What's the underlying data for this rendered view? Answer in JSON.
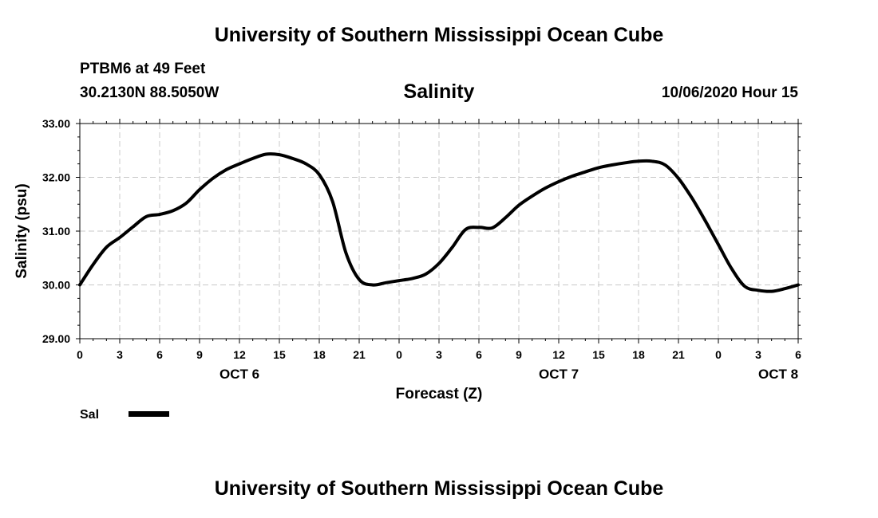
{
  "header": {
    "title": "University of Southern Mississippi Ocean Cube",
    "station": "PTBM6 at 49 Feet",
    "coordinates": "30.2130N 88.5050W",
    "variable": "Salinity",
    "datetime": "10/06/2020 Hour 15"
  },
  "footer": {
    "title": "University of Southern Mississippi Ocean Cube"
  },
  "chart_data": {
    "type": "line",
    "ylabel": "Salinity (psu)",
    "xlabel": "Forecast (Z)",
    "ylim": [
      29.0,
      33.0
    ],
    "yticks": [
      "29.00",
      "30.00",
      "31.00",
      "32.00",
      "33.00"
    ],
    "xlim": [
      0,
      54
    ],
    "xtick_labels": [
      "0",
      "3",
      "6",
      "9",
      "12",
      "15",
      "18",
      "21",
      "0",
      "3",
      "6",
      "9",
      "12",
      "15",
      "18",
      "21",
      "0",
      "3",
      "6"
    ],
    "x_units": "hours from 10/06/2020 00Z",
    "day_labels": [
      {
        "label": "OCT 6",
        "x": 12
      },
      {
        "label": "OCT 7",
        "x": 36
      },
      {
        "label": "OCT 8",
        "x": 52.5
      }
    ],
    "grid": true,
    "line_color": "#000000",
    "series": [
      {
        "name": "Sal",
        "x": [
          0,
          1,
          2,
          3,
          4,
          5,
          6,
          7,
          8,
          9,
          10,
          11,
          12,
          13,
          14,
          15,
          16,
          17,
          18,
          19,
          20,
          21,
          22,
          23,
          24,
          25,
          26,
          27,
          28,
          29,
          30,
          31,
          32,
          33,
          34,
          35,
          36,
          37,
          38,
          39,
          40,
          41,
          42,
          43,
          44,
          45,
          46,
          47,
          48,
          49,
          50,
          51,
          52,
          53,
          54
        ],
        "values": [
          30.0,
          30.38,
          30.7,
          30.88,
          31.08,
          31.27,
          31.31,
          31.38,
          31.52,
          31.77,
          31.98,
          32.14,
          32.25,
          32.35,
          32.43,
          32.42,
          32.35,
          32.25,
          32.05,
          31.55,
          30.6,
          30.1,
          30.0,
          30.04,
          30.08,
          30.12,
          30.2,
          30.4,
          30.7,
          31.03,
          31.07,
          31.06,
          31.25,
          31.48,
          31.65,
          31.8,
          31.92,
          32.02,
          32.1,
          32.18,
          32.23,
          32.27,
          32.3,
          32.3,
          32.23,
          31.98,
          31.62,
          31.2,
          30.75,
          30.3,
          29.97,
          29.9,
          29.88,
          29.93,
          30.0
        ]
      }
    ]
  },
  "legend": {
    "entries": [
      {
        "label": "Sal"
      }
    ]
  }
}
